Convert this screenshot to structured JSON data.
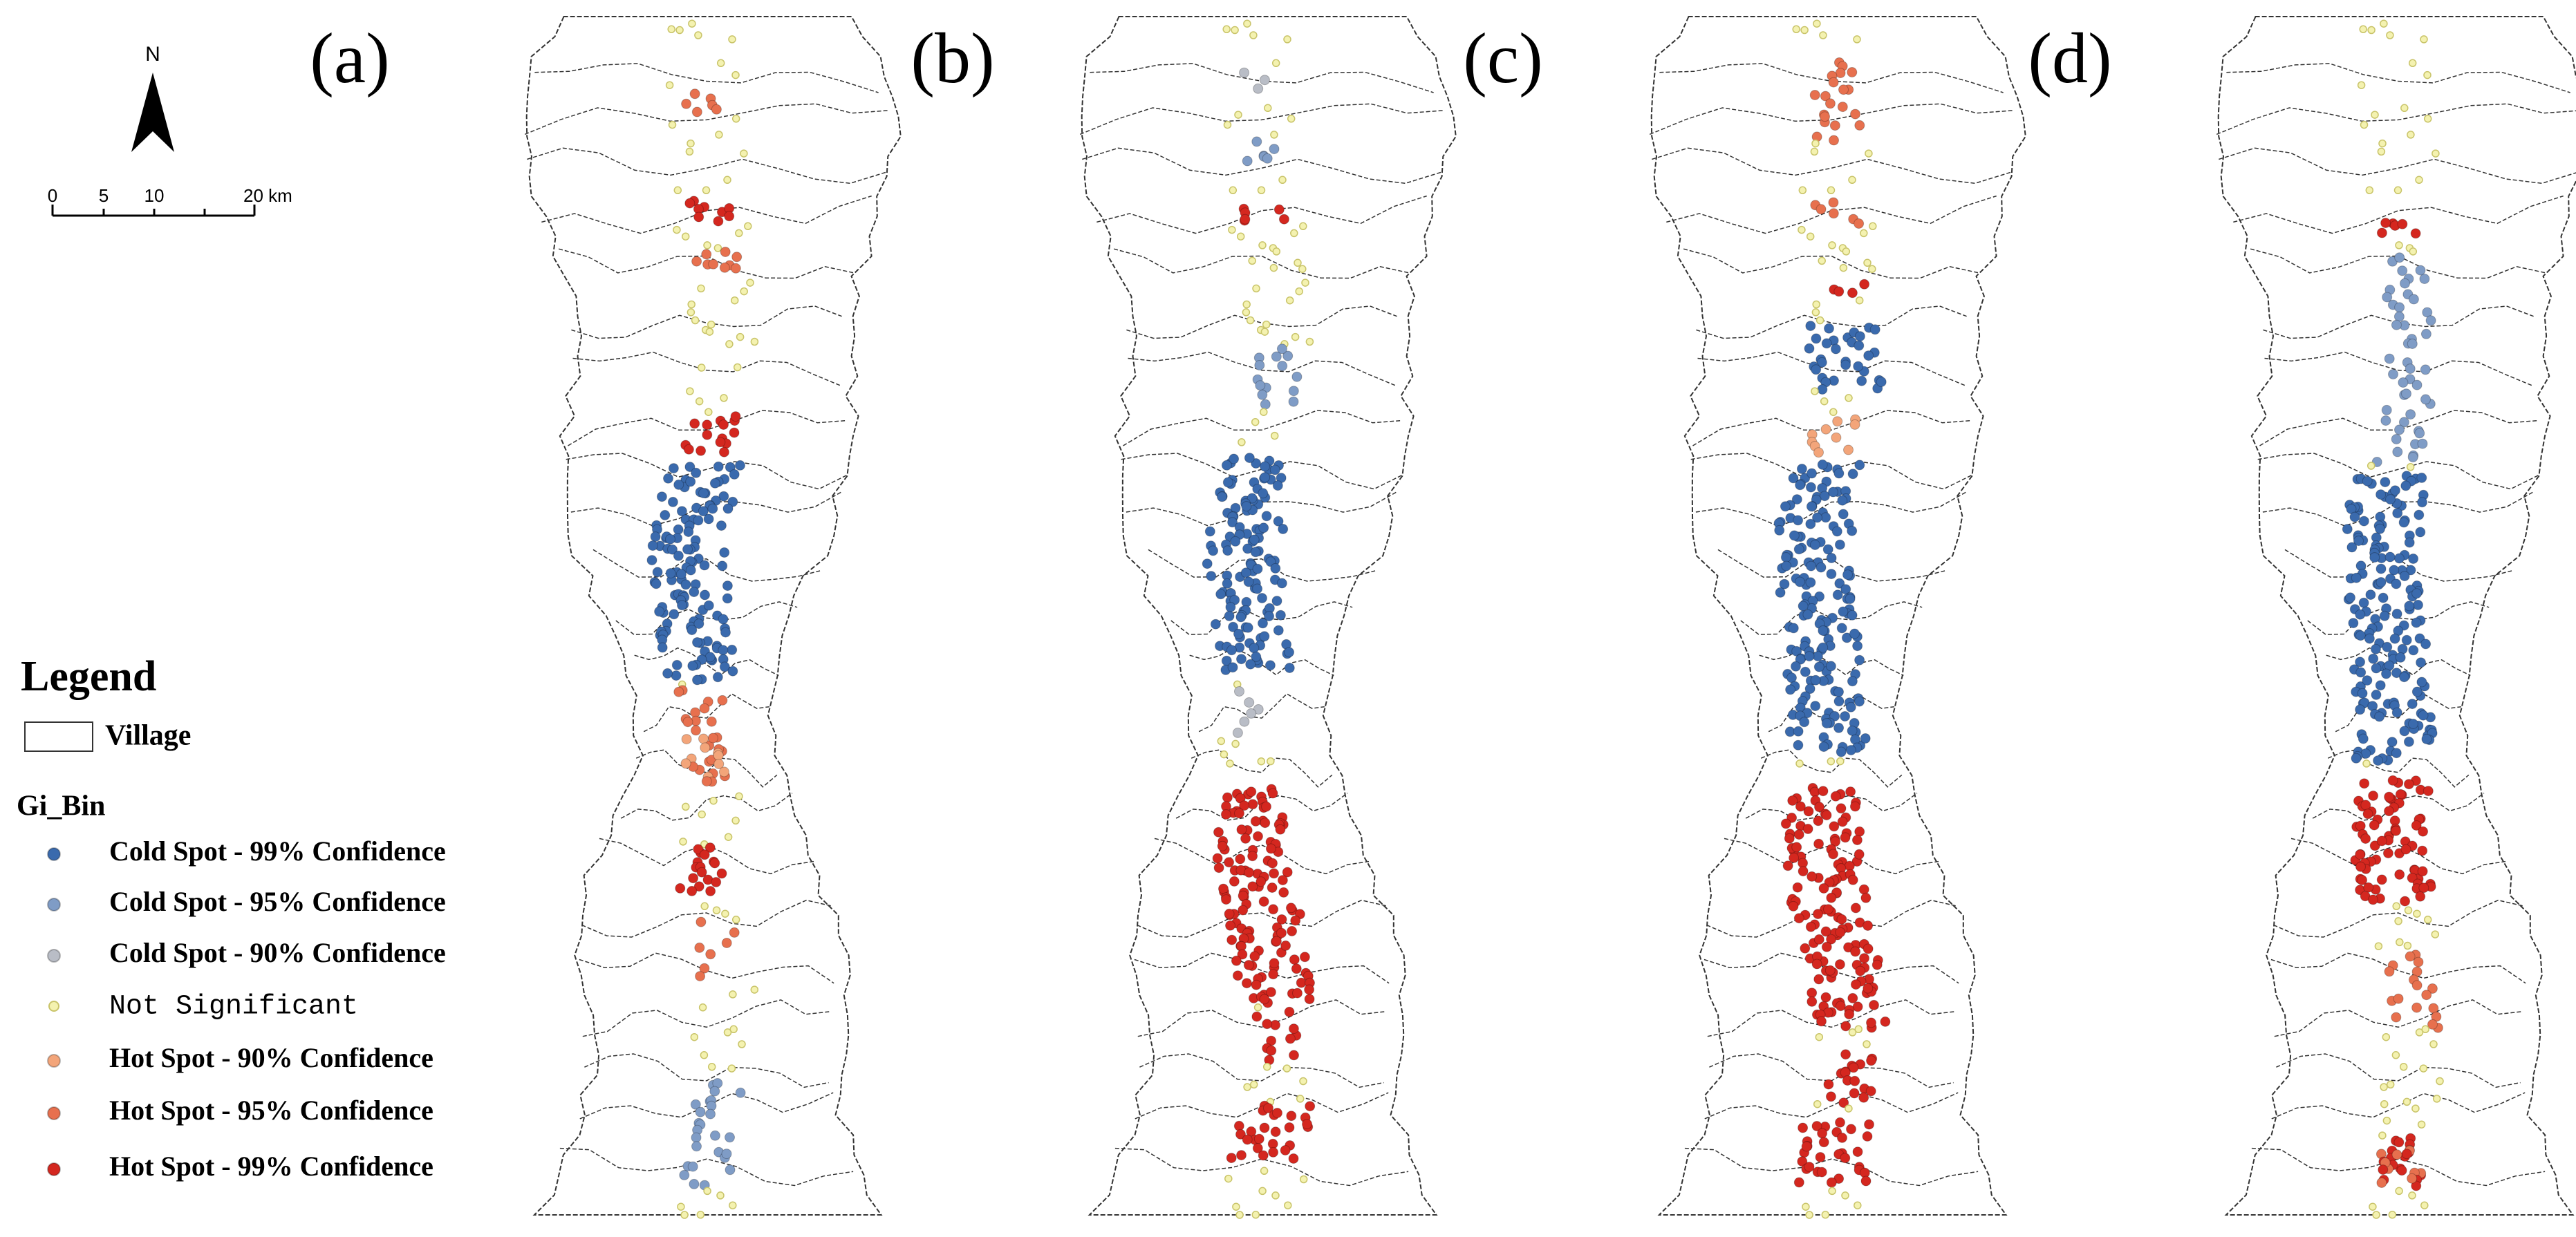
{
  "panels": [
    {
      "label": "(a)"
    },
    {
      "label": "(b)"
    },
    {
      "label": "(c)"
    },
    {
      "label": "(d)"
    }
  ],
  "north_arrow": {
    "label": "N"
  },
  "scale_bar": {
    "labels": [
      "0",
      "5",
      "10",
      "20 km"
    ]
  },
  "legend": {
    "title": "Legend",
    "village": "Village",
    "field": "Gi_Bin",
    "classes": [
      {
        "label": "Cold Spot - 99% Confidence",
        "color": "#3a6aad"
      },
      {
        "label": "Cold Spot - 95% Confidence",
        "color": "#7f9cc6"
      },
      {
        "label": "Cold Spot - 90% Confidence",
        "color": "#b9bdc6"
      },
      {
        "label": "Not Significant",
        "color": "#f4f2b0"
      },
      {
        "label": "Hot Spot - 90% Confidence",
        "color": "#f3a57a"
      },
      {
        "label": "Hot Spot - 95% Confidence",
        "color": "#e7704e"
      },
      {
        "label": "Hot Spot - 99% Confidence",
        "color": "#d4271f"
      }
    ]
  }
}
